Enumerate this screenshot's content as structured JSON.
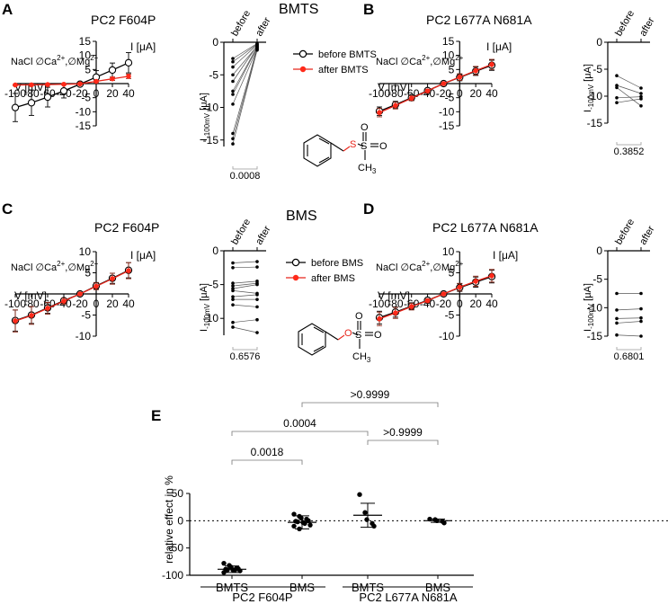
{
  "panels": [
    {
      "letter": "A",
      "title": "PC2 F604P",
      "cond1": "NaCl ∅Ca",
      "cond2": ",∅Mg",
      "sup": "2+"
    },
    {
      "letter": "B",
      "title": "PC2 L677A N681A",
      "cond1": "NaCl ∅Ca",
      "cond2": ",∅Mg",
      "sup": "2+"
    },
    {
      "letter": "C",
      "title": "PC2 F604P",
      "cond1": "NaCl ∅Ca",
      "cond2": ",∅Mg",
      "sup": "2+"
    },
    {
      "letter": "D",
      "title": "PC2 L677A N681A",
      "cond1": "NaCl ∅Ca",
      "cond2": ",∅Mg",
      "sup": "2+"
    },
    {
      "letter": "E"
    }
  ],
  "compound_titles": {
    "top": "BMTS",
    "middle": "BMS"
  },
  "legends": {
    "top": [
      "before BMTS",
      "after BMTS"
    ],
    "middle": [
      "before BMS",
      "after BMS"
    ]
  },
  "structures": {
    "top": {
      "hetero": "S",
      "s": "S",
      "o": "O",
      "me": "CH",
      "sub": "3"
    },
    "middle": {
      "hetero": "O",
      "s": "S",
      "o": "O",
      "me": "CH",
      "sub": "3"
    }
  },
  "axis_text": {
    "iv_xlabel": "V [mV]",
    "iv_ylabel": "I [μA]",
    "paired_ylabel_main": "I",
    "paired_ylabel_sub": "-100mV",
    "paired_ylabel_unit": " [μA]",
    "paired_categories": [
      "before",
      "after"
    ],
    "e_ylabel": "relative effect in %"
  },
  "colors": {
    "before": "#000000",
    "after": "#e8251a",
    "after_point": "#ff2a1a",
    "error_after": "#8b2a1a",
    "hetero": "#e8251a"
  },
  "chart_data": [
    {
      "id": "A-iv",
      "type": "line",
      "title": "PC2 F604P",
      "xlabel": "V [mV]",
      "ylabel": "I [μA]",
      "xlim": [
        -100,
        40
      ],
      "ylim": [
        -15,
        15
      ],
      "xticks": [
        -100,
        -80,
        -60,
        -40,
        -20,
        0,
        20,
        40
      ],
      "yticks": [
        -15,
        -10,
        -5,
        0,
        5,
        10,
        15
      ],
      "x": [
        -100,
        -80,
        -60,
        -40,
        -20,
        0,
        20,
        40
      ],
      "series": [
        {
          "name": "before BMTS",
          "y": [
            -8.5,
            -6.8,
            -4.8,
            -2.6,
            -0.2,
            2.3,
            4.8,
            7.4
          ],
          "err": [
            5,
            4.5,
            3.5,
            2.5,
            0.3,
            2.3,
            2.5,
            3.6
          ]
        },
        {
          "name": "after BMTS",
          "y": [
            -0.5,
            -0.45,
            -0.35,
            -0.25,
            -0.1,
            0.8,
            1.7,
            2.6
          ],
          "err": [
            0.2,
            0.2,
            0.2,
            0.2,
            0.1,
            0.4,
            0.6,
            0.8
          ]
        }
      ]
    },
    {
      "id": "A-paired",
      "type": "scatter",
      "ylabel": "I-100mV [μA]",
      "ylim": [
        -16,
        0
      ],
      "yticks": [
        -15,
        -10,
        -5,
        0
      ],
      "categories": [
        "before",
        "after"
      ],
      "p_value": "0.0008",
      "pairs": [
        [
          -2.5,
          -0.2
        ],
        [
          -3.0,
          -0.3
        ],
        [
          -3.8,
          -0.4
        ],
        [
          -5.0,
          -0.6
        ],
        [
          -6.0,
          -0.5
        ],
        [
          -7.5,
          -0.7
        ],
        [
          -8.0,
          -0.8
        ],
        [
          -9.5,
          -1.0
        ],
        [
          -14.0,
          -0.9
        ],
        [
          -14.8,
          -1.1
        ],
        [
          -15.6,
          -1.2
        ]
      ]
    },
    {
      "id": "B-iv",
      "type": "line",
      "title": "PC2 L677A N681A",
      "xlabel": "V [mV]",
      "ylabel": "I [μA]",
      "xlim": [
        -100,
        40
      ],
      "ylim": [
        -15,
        15
      ],
      "xticks": [
        -100,
        -80,
        -60,
        -40,
        -20,
        0,
        20,
        40
      ],
      "yticks": [
        -15,
        -10,
        -5,
        0,
        5,
        10,
        15
      ],
      "x": [
        -100,
        -80,
        -60,
        -40,
        -20,
        0,
        20,
        40
      ],
      "series": [
        {
          "name": "before BMTS",
          "y": [
            -9.8,
            -7.5,
            -5.0,
            -2.5,
            0.0,
            2.2,
            4.4,
            6.5
          ],
          "err": [
            1.5,
            1.2,
            0.9,
            0.5,
            0.2,
            1.2,
            1.5,
            1.8
          ]
        },
        {
          "name": "after BMTS",
          "y": [
            -10.3,
            -7.8,
            -5.2,
            -2.6,
            0.0,
            2.3,
            4.6,
            6.8
          ],
          "err": [
            1.5,
            1.2,
            0.9,
            0.5,
            0.2,
            1.2,
            1.5,
            1.8
          ]
        }
      ]
    },
    {
      "id": "B-paired",
      "type": "scatter",
      "ylabel": "I-100mV [μA]",
      "ylim": [
        -15,
        0
      ],
      "yticks": [
        -15,
        -10,
        -5,
        0
      ],
      "categories": [
        "before",
        "after"
      ],
      "p_value": "0.3852",
      "pairs": [
        [
          -6.2,
          -8.5
        ],
        [
          -8.0,
          -9.5
        ],
        [
          -10.3,
          -10.1
        ],
        [
          -11.2,
          -10.5
        ],
        [
          -8.4,
          -11.8
        ]
      ]
    },
    {
      "id": "C-iv",
      "type": "line",
      "title": "PC2 F604P",
      "xlabel": "V [mV]",
      "ylabel": "I [μA]",
      "xlim": [
        -100,
        40
      ],
      "ylim": [
        -10,
        10
      ],
      "xticks": [
        -100,
        -80,
        -60,
        -40,
        -20,
        0,
        20,
        40
      ],
      "yticks": [
        -10,
        -5,
        0,
        5,
        10
      ],
      "x": [
        -100,
        -80,
        -60,
        -40,
        -20,
        0,
        20,
        40
      ],
      "series": [
        {
          "name": "before BMS",
          "y": [
            -6.3,
            -5.0,
            -3.3,
            -1.6,
            0.0,
            1.9,
            3.7,
            5.6
          ],
          "err": [
            2.5,
            2.0,
            1.3,
            0.6,
            0.2,
            0.8,
            1.2,
            1.8
          ]
        },
        {
          "name": "after BMS",
          "y": [
            -6.4,
            -5.1,
            -3.4,
            -1.7,
            0.0,
            1.8,
            3.6,
            5.5
          ],
          "err": [
            2.6,
            2.1,
            1.4,
            0.7,
            0.2,
            0.8,
            1.3,
            1.9
          ]
        }
      ]
    },
    {
      "id": "C-paired",
      "type": "scatter",
      "ylabel": "I-100mV [μA]",
      "ylim": [
        -12.5,
        0
      ],
      "yticks": [
        -10,
        -5,
        0
      ],
      "categories": [
        "before",
        "after"
      ],
      "p_value": "0.6576",
      "pairs": [
        [
          -1.8,
          -1.6
        ],
        [
          -2.5,
          -2.4
        ],
        [
          -4.8,
          -4.5
        ],
        [
          -5.2,
          -4.8
        ],
        [
          -5.6,
          -5.0
        ],
        [
          -5.9,
          -6.3
        ],
        [
          -6.8,
          -6.5
        ],
        [
          -7.2,
          -7.2
        ],
        [
          -8.0,
          -8.3
        ],
        [
          -10.6,
          -10.2
        ],
        [
          -11.3,
          -12.1
        ]
      ]
    },
    {
      "id": "D-iv",
      "type": "line",
      "title": "PC2 L677A N681A",
      "xlabel": "V [mV]",
      "ylabel": "I [μA]",
      "xlim": [
        -100,
        40
      ],
      "ylim": [
        -10,
        10
      ],
      "xticks": [
        -100,
        -80,
        -60,
        -40,
        -20,
        0,
        20,
        40
      ],
      "yticks": [
        -10,
        -5,
        0,
        5,
        10
      ],
      "x": [
        -100,
        -80,
        -60,
        -40,
        -20,
        0,
        20,
        40
      ],
      "series": [
        {
          "name": "before BMS",
          "y": [
            -5.6,
            -4.3,
            -2.9,
            -1.5,
            0.0,
            1.5,
            2.8,
            4.1
          ],
          "err": [
            1.5,
            1.2,
            0.8,
            0.4,
            0.1,
            0.9,
            1.2,
            1.5
          ]
        },
        {
          "name": "after BMS",
          "y": [
            -5.9,
            -4.5,
            -3.0,
            -1.6,
            0.0,
            1.6,
            3.0,
            4.3
          ],
          "err": [
            1.6,
            1.3,
            0.8,
            0.4,
            0.1,
            0.9,
            1.2,
            1.5
          ]
        }
      ]
    },
    {
      "id": "D-paired",
      "type": "scatter",
      "ylabel": "I-100mV [μA]",
      "ylim": [
        -15,
        0
      ],
      "yticks": [
        -15,
        -10,
        -5,
        0
      ],
      "categories": [
        "before",
        "after"
      ],
      "p_value": "0.6801",
      "pairs": [
        [
          -7.5,
          -7.5
        ],
        [
          -10.4,
          -10.2
        ],
        [
          -11.9,
          -11.8
        ],
        [
          -12.7,
          -12.4
        ],
        [
          -14.8,
          -15.0
        ]
      ]
    },
    {
      "id": "E",
      "type": "scatter",
      "ylabel": "relative effect in %",
      "ylim": [
        -100,
        50
      ],
      "yticks": [
        -100,
        -50,
        0,
        50
      ],
      "categories": [
        "BMTS",
        "BMS",
        "BMTS",
        "BMS"
      ],
      "groups": [
        "PC2 F604P",
        "PC2 L677A N681A"
      ],
      "values": [
        [
          -78,
          -82,
          -85,
          -87,
          -88,
          -89,
          -90,
          -90,
          -91,
          -92,
          -95
        ],
        [
          12,
          8,
          5,
          3,
          0,
          -1,
          -2,
          -3,
          -5,
          -8,
          -10,
          -15
        ],
        [
          48,
          15,
          2,
          -5,
          -10
        ],
        [
          3,
          2,
          0,
          -1,
          -4
        ]
      ],
      "mean": [
        -89,
        -3,
        10,
        0
      ],
      "sd": [
        6,
        12,
        22,
        3
      ],
      "comparisons": [
        {
          "from": 0,
          "to": 1,
          "label": "0.0018"
        },
        {
          "from": 0,
          "to": 2,
          "label": "0.0004"
        },
        {
          "from": 1,
          "to": 3,
          "label": ">0.9999"
        },
        {
          "from": 2,
          "to": 3,
          "label": ">0.9999"
        }
      ]
    }
  ]
}
